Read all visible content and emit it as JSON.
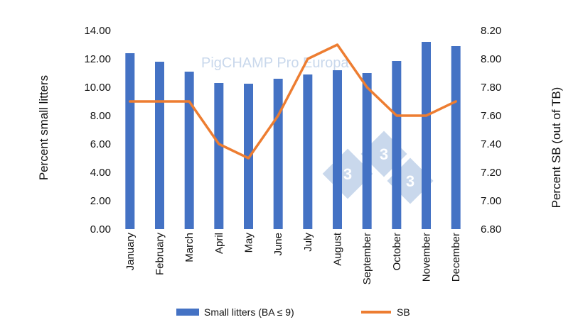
{
  "chart_data": {
    "type": "bar+line",
    "categories": [
      "January",
      "February",
      "March",
      "April",
      "May",
      "June",
      "July",
      "August",
      "September",
      "October",
      "November",
      "December"
    ],
    "series": [
      {
        "name": "Small litters (BA ≤ 9)",
        "type": "bar",
        "axis": "left",
        "color": "#4472c4",
        "values": [
          12.4,
          11.8,
          11.1,
          10.3,
          10.25,
          10.6,
          10.9,
          11.2,
          11.0,
          11.85,
          13.2,
          12.9
        ]
      },
      {
        "name": "SB",
        "type": "line",
        "axis": "right",
        "color": "#ed7d31",
        "values": [
          7.7,
          7.7,
          7.7,
          7.4,
          7.3,
          7.6,
          8.0,
          8.1,
          7.8,
          7.6,
          7.6,
          7.7
        ]
      }
    ],
    "ylabel": "Percent small litters",
    "y2label": "Percent SB (out of TB)",
    "ylim": [
      0,
      14
    ],
    "y2lim": [
      6.8,
      8.2
    ],
    "yticks": [
      "0.00",
      "2.00",
      "4.00",
      "6.00",
      "8.00",
      "10.00",
      "12.00",
      "14.00"
    ],
    "y2ticks": [
      "6.80",
      "7.00",
      "7.20",
      "7.40",
      "7.60",
      "7.80",
      "8.00",
      "8.20"
    ],
    "grid": false,
    "legend_position": "bottom"
  },
  "watermark": {
    "text": "PigCHAMP Pro Europa",
    "logo_digits": [
      "3",
      "3",
      "3"
    ],
    "logo_color": "#c9d8ec"
  }
}
